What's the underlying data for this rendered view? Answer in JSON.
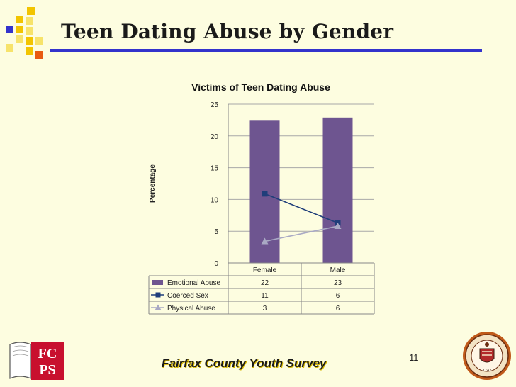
{
  "slide": {
    "title": "Teen Dating Abuse by Gender",
    "footer": "Fairfax County Youth Survey",
    "page_number": "11",
    "accent_color": "#3333cc",
    "background_color": "#fdfde0"
  },
  "logos": {
    "left_text": "FCPS",
    "left_color": "#c8102e",
    "right_seal_year": "1742"
  },
  "chart_data": {
    "type": "bar",
    "title": "Victims of Teen Dating Abuse",
    "xlabel": "",
    "ylabel": "Percentage",
    "ylim": [
      0,
      25
    ],
    "yticks": [
      0,
      5,
      10,
      15,
      20,
      25
    ],
    "grid": true,
    "categories": [
      "Female",
      "Male"
    ],
    "series": [
      {
        "name": "Emotional Abuse",
        "kind": "bar",
        "color": "#6e5590",
        "values": [
          22,
          23
        ],
        "plot_values": [
          22.4,
          22.9
        ]
      },
      {
        "name": "Coerced Sex",
        "kind": "line",
        "marker": "square",
        "color": "#1f3e7a",
        "values": [
          11,
          6
        ],
        "plot_values": [
          10.9,
          6.3
        ]
      },
      {
        "name": "Physical Abuse",
        "kind": "line",
        "marker": "triangle",
        "color": "#a9a9c4",
        "values": [
          3,
          6
        ],
        "plot_values": [
          3.4,
          5.8
        ]
      }
    ]
  }
}
